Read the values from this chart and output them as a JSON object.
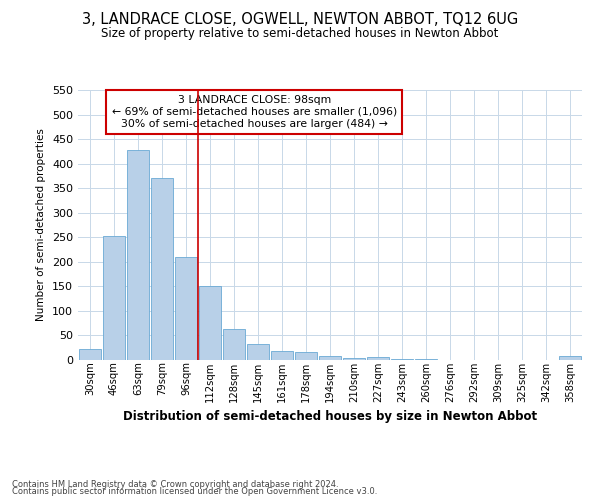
{
  "title": "3, LANDRACE CLOSE, OGWELL, NEWTON ABBOT, TQ12 6UG",
  "subtitle": "Size of property relative to semi-detached houses in Newton Abbot",
  "xlabel": "Distribution of semi-detached houses by size in Newton Abbot",
  "ylabel": "Number of semi-detached properties",
  "footer1": "Contains HM Land Registry data © Crown copyright and database right 2024.",
  "footer2": "Contains public sector information licensed under the Open Government Licence v3.0.",
  "categories": [
    "30sqm",
    "46sqm",
    "63sqm",
    "79sqm",
    "96sqm",
    "112sqm",
    "128sqm",
    "145sqm",
    "161sqm",
    "178sqm",
    "194sqm",
    "210sqm",
    "227sqm",
    "243sqm",
    "260sqm",
    "276sqm",
    "292sqm",
    "309sqm",
    "325sqm",
    "342sqm",
    "358sqm"
  ],
  "values": [
    23,
    253,
    428,
    370,
    210,
    151,
    63,
    32,
    19,
    17,
    8,
    5,
    7,
    3,
    3,
    1,
    0,
    0,
    0,
    0,
    8
  ],
  "highlight_index": 4,
  "property_size": "98sqm",
  "pct_smaller": 69,
  "n_smaller": 1096,
  "pct_larger": 30,
  "n_larger": 484,
  "bar_color": "#b8d0e8",
  "bar_edge_color": "#6aaad4",
  "highlight_line_color": "#cc0000",
  "annotation_box_edge": "#cc0000",
  "background_color": "#ffffff",
  "grid_color": "#c8d8e8",
  "ylim": [
    0,
    550
  ],
  "yticks": [
    0,
    50,
    100,
    150,
    200,
    250,
    300,
    350,
    400,
    450,
    500,
    550
  ]
}
